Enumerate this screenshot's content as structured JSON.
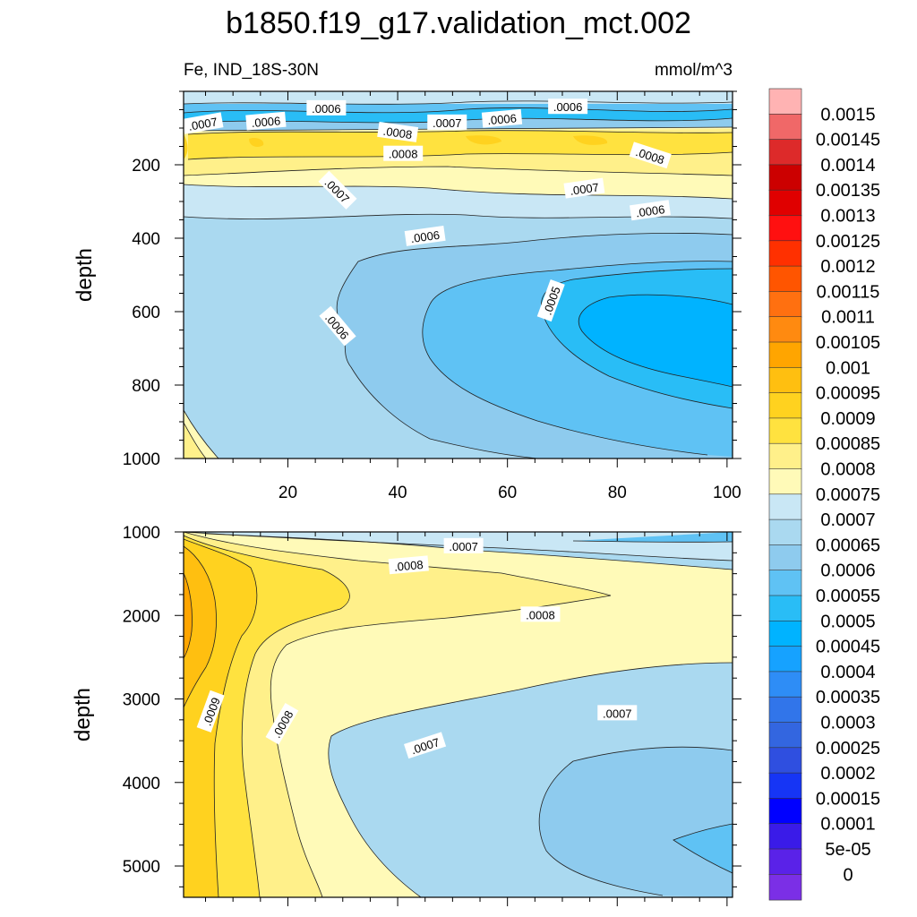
{
  "title": "b1850.f19_g17.validation_mct.002",
  "left_string": "Fe, IND_18S-30N",
  "right_string": "mmol/m^3",
  "chart_data": [
    {
      "type": "contour",
      "panel": "upper",
      "xlim": [
        1,
        101
      ],
      "ylim": [
        1000,
        0
      ],
      "ylabel": "depth",
      "xticks": [
        20,
        40,
        60,
        80,
        100
      ],
      "xtick_labels": [
        "20",
        "40",
        "60",
        "80",
        "100"
      ],
      "yticks": [
        200,
        400,
        600,
        800,
        1000
      ],
      "ytick_labels": [
        "200",
        "400",
        "600",
        "800",
        "1000"
      ],
      "contour_labels": [
        {
          "text": ".0007",
          "x": 4.5,
          "y": 88,
          "angle": -10
        },
        {
          "text": ".0006",
          "x": 16,
          "y": 82,
          "angle": -5
        },
        {
          "text": ".0006",
          "x": 27,
          "y": 46,
          "angle": 0
        },
        {
          "text": ".0007",
          "x": 49,
          "y": 85,
          "angle": 0
        },
        {
          "text": ".0006",
          "x": 59,
          "y": 75,
          "angle": -5
        },
        {
          "text": ".0006",
          "x": 71,
          "y": 42,
          "angle": 0
        },
        {
          "text": ".0008",
          "x": 40,
          "y": 112,
          "angle": 8
        },
        {
          "text": ".0008",
          "x": 41,
          "y": 170,
          "angle": 0
        },
        {
          "text": ".0008",
          "x": 86,
          "y": 175,
          "angle": 18
        },
        {
          "text": ".0007",
          "x": 29,
          "y": 270,
          "angle": 45
        },
        {
          "text": ".0007",
          "x": 74,
          "y": 265,
          "angle": -8
        },
        {
          "text": ".0006",
          "x": 86,
          "y": 325,
          "angle": -8
        },
        {
          "text": ".0006",
          "x": 45,
          "y": 395,
          "angle": -8
        },
        {
          "text": ".0006",
          "x": 29,
          "y": 640,
          "angle": 50
        },
        {
          "text": ".0005",
          "x": 68,
          "y": 570,
          "angle": -70
        }
      ]
    },
    {
      "type": "contour",
      "panel": "lower",
      "xlim": [
        1,
        101
      ],
      "ylim": [
        5375,
        1000
      ],
      "ylabel": "depth",
      "yticks": [
        1000,
        2000,
        3000,
        4000,
        5000
      ],
      "ytick_labels": [
        "1000",
        "2000",
        "3000",
        "4000",
        "5000"
      ],
      "contour_labels": [
        {
          "text": ".0007",
          "x": 52,
          "y": 1170,
          "angle": 0
        },
        {
          "text": ".0008",
          "x": 42,
          "y": 1400,
          "angle": -5
        },
        {
          "text": ".0008",
          "x": 66,
          "y": 1990,
          "angle": 0
        },
        {
          "text": ".0009",
          "x": 6,
          "y": 3150,
          "angle": -70
        },
        {
          "text": ".0008",
          "x": 19,
          "y": 3300,
          "angle": -60
        },
        {
          "text": ".0007",
          "x": 80,
          "y": 3170,
          "angle": 0
        },
        {
          "text": ".0007",
          "x": 45,
          "y": 3560,
          "angle": -18
        }
      ]
    }
  ],
  "colorbar": {
    "levels": [
      "0.0015",
      "0.00145",
      "0.0014",
      "0.00135",
      "0.0013",
      "0.00125",
      "0.0012",
      "0.00115",
      "0.0011",
      "0.00105",
      "0.001",
      "0.00095",
      "0.0009",
      "0.00085",
      "0.0008",
      "0.00075",
      "0.0007",
      "0.00065",
      "0.0006",
      "0.00055",
      "0.0005",
      "0.00045",
      "0.0004",
      "0.00035",
      "0.0003",
      "0.00025",
      "0.0002",
      "0.00015",
      "0.0001",
      "5e-05",
      "0"
    ],
    "colors": [
      "#ffb3b3",
      "#f06868",
      "#dd2a2a",
      "#cc0000",
      "#e00000",
      "#ff1010",
      "#ff3000",
      "#ff5500",
      "#ff7010",
      "#ff8a10",
      "#ffa500",
      "#ffbf10",
      "#ffd21f",
      "#ffe23f",
      "#fff08a",
      "#fffab8",
      "#c9e7f5",
      "#aad9f0",
      "#8ecbee",
      "#5fc2f4",
      "#29bdf6",
      "#00b3ff",
      "#16a2ff",
      "#2e8df6",
      "#3175ea",
      "#3366e0",
      "#2f4fe0",
      "#1635f5",
      "#0000ff",
      "#3a1be8",
      "#5a22e8",
      "#7b2fe6"
    ]
  }
}
